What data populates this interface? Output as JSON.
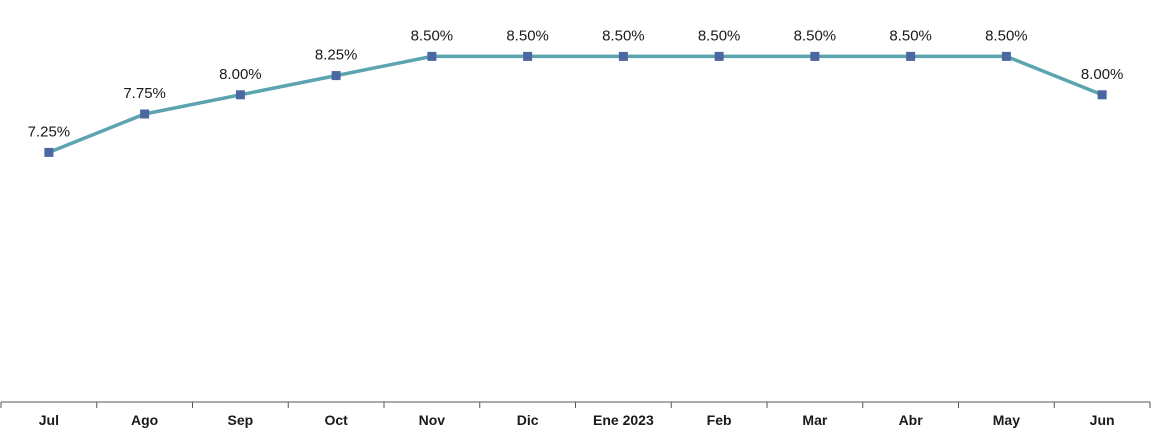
{
  "chart_data": {
    "type": "line",
    "categories": [
      "Jul",
      "Ago",
      "Sep",
      "Oct",
      "Nov",
      "Dic",
      "Ene 2023",
      "Feb",
      "Mar",
      "Abr",
      "May",
      "Jun"
    ],
    "series": [
      {
        "values": [
          7.25,
          7.75,
          8.0,
          8.25,
          8.5,
          8.5,
          8.5,
          8.5,
          8.5,
          8.5,
          8.5,
          8.0
        ],
        "data_labels": [
          "7.25%",
          "7.75%",
          "8.00%",
          "8.25%",
          "8.50%",
          "8.50%",
          "8.50%",
          "8.50%",
          "8.50%",
          "8.50%",
          "8.50%",
          "8.00%"
        ]
      }
    ],
    "title": "",
    "xlabel": "",
    "ylabel": "",
    "ylim": [
      4.0,
      9.0
    ],
    "grid": false,
    "legend": "none",
    "colors": {
      "line": "#5ba4b0",
      "marker": "#4a67a1",
      "axis": "#555555"
    }
  }
}
